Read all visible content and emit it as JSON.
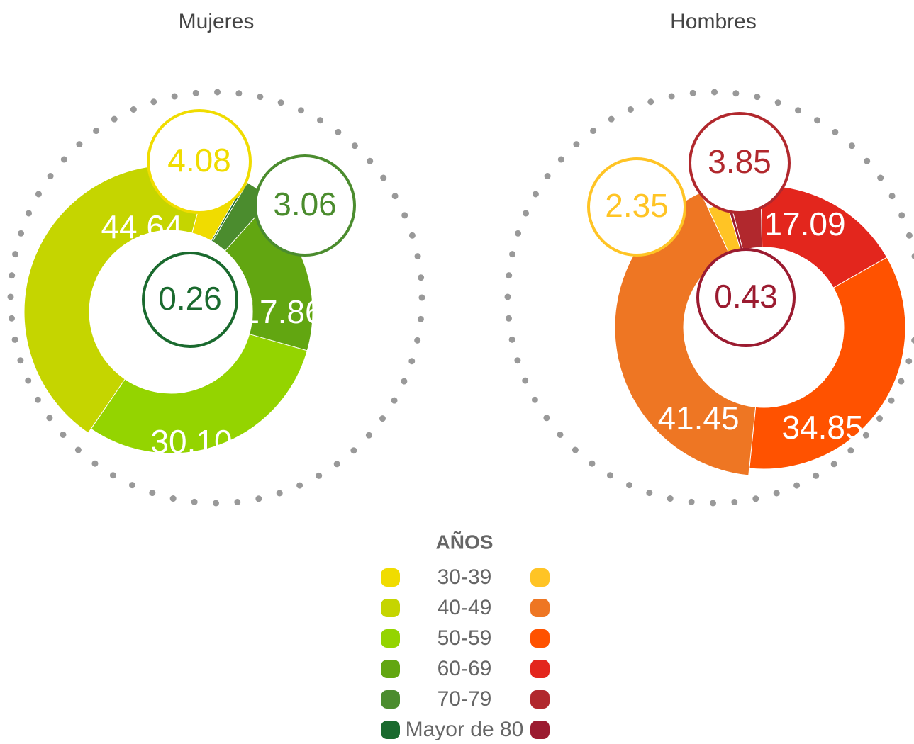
{
  "chart_data": [
    {
      "type": "pie",
      "title": "Mujeres",
      "categories": [
        "30-39",
        "40-49",
        "50-59",
        "60-69",
        "70-79",
        "Mayor de 80"
      ],
      "values": [
        4.08,
        44.64,
        30.1,
        17.86,
        3.06,
        0.26
      ],
      "value_labels": [
        "4.08",
        "44.64",
        "30.10",
        "17.86",
        "3.06",
        "0.26"
      ],
      "colors": [
        "#f0dc00",
        "#c5d500",
        "#94d400",
        "#62a611",
        "#4b8c2e",
        "#1a6a2e"
      ]
    },
    {
      "type": "pie",
      "title": "Hombres",
      "categories": [
        "30-39",
        "40-49",
        "50-59",
        "60-69",
        "70-79",
        "Mayor de 80"
      ],
      "values": [
        2.35,
        41.45,
        34.85,
        17.09,
        3.85,
        0.43
      ],
      "value_labels": [
        "2.35",
        "41.45",
        "34.85",
        "17.09",
        "3.85",
        "0.43"
      ],
      "colors": [
        "#ffc425",
        "#ee7623",
        "#ff5200",
        "#e3261d",
        "#b1282d",
        "#9b1b30"
      ]
    }
  ],
  "legend_title": "AÑOS"
}
